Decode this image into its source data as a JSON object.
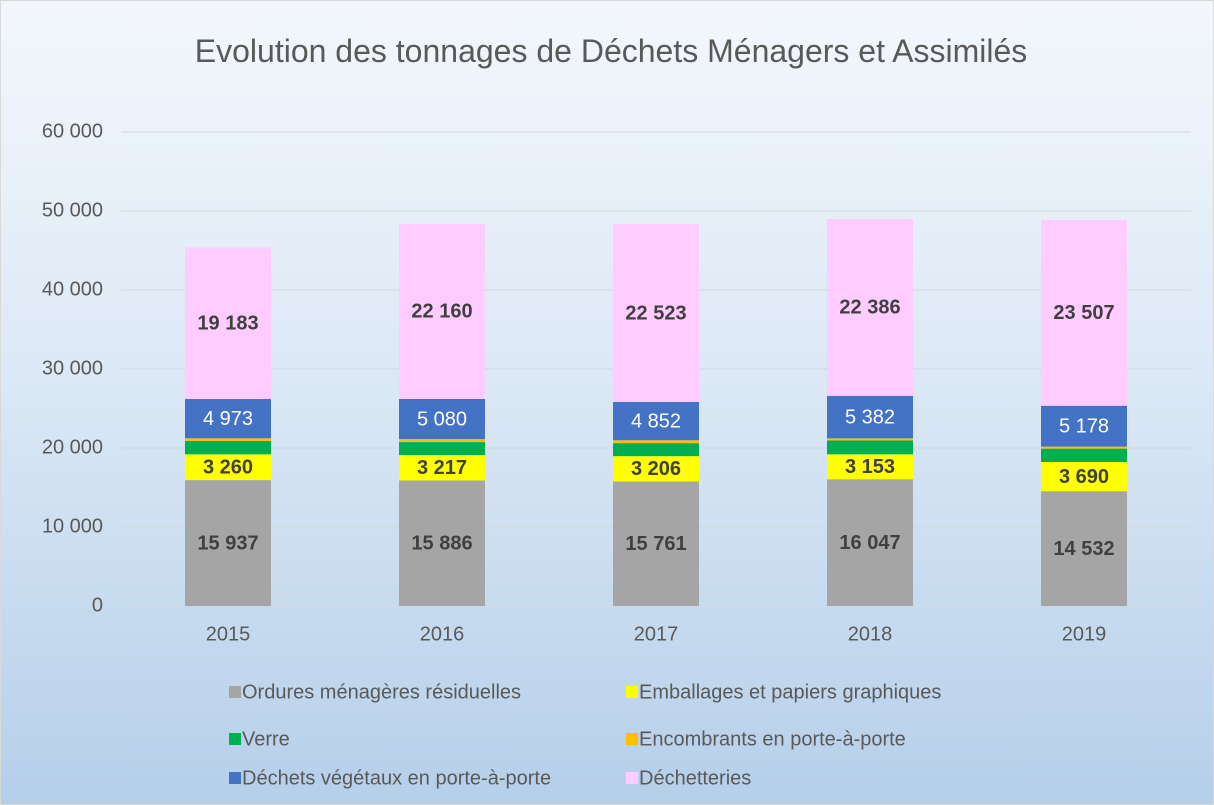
{
  "chart_data": {
    "type": "stacked_bar",
    "title": "Evolution des tonnages de Déchets Ménagers et Assimilés",
    "categories": [
      "2015",
      "2016",
      "2017",
      "2018",
      "2019"
    ],
    "series": [
      {
        "name": "Ordures ménagères résiduelles",
        "color": "#a5a5a5",
        "values": [
          15937,
          15886,
          15761,
          16047,
          14532
        ],
        "value_labels": [
          "15 937",
          "15 886",
          "15 761",
          "16 047",
          "14 532"
        ]
      },
      {
        "name": "Emballages et papiers graphiques",
        "color": "#ffff00",
        "values": [
          3260,
          3217,
          3206,
          3153,
          3690
        ],
        "value_labels": [
          "3 260",
          "3 217",
          "3 206",
          "3 153",
          "3 690"
        ]
      },
      {
        "name": "Verre",
        "color": "#00b050",
        "values": [
          1700,
          1650,
          1650,
          1750,
          1700
        ]
      },
      {
        "name": "Encombrants en porte-à-porte",
        "color": "#ffc000",
        "values": [
          330,
          370,
          360,
          270,
          250
        ]
      },
      {
        "name": "Déchets végétaux en porte-à-porte",
        "color": "#4472c4",
        "values": [
          4973,
          5080,
          4852,
          5382,
          5178
        ],
        "value_labels": [
          "4 973",
          "5 080",
          "4 852",
          "5 382",
          "5 178"
        ]
      },
      {
        "name": "Déchetteries",
        "color": "#ffccff",
        "values": [
          19183,
          22160,
          22523,
          22386,
          23507
        ],
        "value_labels": [
          "19 183",
          "22 160",
          "22 523",
          "22 386",
          "23 507"
        ]
      }
    ],
    "ylim": [
      0,
      60000
    ],
    "yticks": [
      0,
      {
        "value": 10000,
        "label": "10 000"
      },
      {
        "value": 20000,
        "label": "20 000"
      },
      {
        "value": 30000,
        "label": "30 000"
      },
      {
        "value": 40000,
        "label": "40 000"
      },
      {
        "value": 50000,
        "label": "50 000"
      },
      {
        "value": 60000,
        "label": "60 000"
      }
    ],
    "grid": true
  }
}
